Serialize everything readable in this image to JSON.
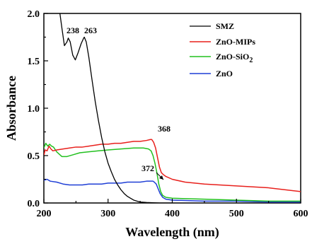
{
  "chart_data": {
    "type": "line",
    "xlabel": "Wavelength (nm)",
    "ylabel": "Absorbance",
    "xlim": [
      200,
      600
    ],
    "ylim": [
      0.0,
      2.0
    ],
    "xticks": [
      200,
      300,
      400,
      500,
      600
    ],
    "yticks": [
      0.0,
      0.5,
      1.0,
      1.5,
      2.0
    ],
    "xtick_labels": [
      "200",
      "300",
      "400",
      "500",
      "600"
    ],
    "ytick_labels": [
      "0.0",
      "0.5",
      "1.0",
      "1.5",
      "2.0"
    ],
    "legend_position": "top-right",
    "series": [
      {
        "name": "SMZ",
        "color": "#000000",
        "points": [
          [
            225,
            2.0
          ],
          [
            228,
            1.85
          ],
          [
            232,
            1.66
          ],
          [
            236,
            1.7
          ],
          [
            238,
            1.74
          ],
          [
            241,
            1.7
          ],
          [
            245,
            1.56
          ],
          [
            249,
            1.51
          ],
          [
            253,
            1.58
          ],
          [
            258,
            1.68
          ],
          [
            262,
            1.74
          ],
          [
            263,
            1.75
          ],
          [
            266,
            1.7
          ],
          [
            270,
            1.54
          ],
          [
            275,
            1.3
          ],
          [
            280,
            1.07
          ],
          [
            285,
            0.87
          ],
          [
            290,
            0.69
          ],
          [
            295,
            0.54
          ],
          [
            300,
            0.42
          ],
          [
            305,
            0.33
          ],
          [
            310,
            0.25
          ],
          [
            315,
            0.19
          ],
          [
            320,
            0.14
          ],
          [
            325,
            0.1
          ],
          [
            330,
            0.07
          ],
          [
            335,
            0.05
          ],
          [
            340,
            0.03
          ],
          [
            345,
            0.02
          ],
          [
            350,
            0.01
          ],
          [
            360,
            0.005
          ],
          [
            380,
            0.0
          ],
          [
            400,
            0.0
          ]
        ]
      },
      {
        "name": "ZnO-MIPs",
        "color": "#e8201c",
        "points": [
          [
            200,
            0.5
          ],
          [
            202,
            0.56
          ],
          [
            205,
            0.55
          ],
          [
            208,
            0.6
          ],
          [
            211,
            0.57
          ],
          [
            214,
            0.55
          ],
          [
            220,
            0.56
          ],
          [
            230,
            0.57
          ],
          [
            240,
            0.58
          ],
          [
            250,
            0.59
          ],
          [
            260,
            0.59
          ],
          [
            270,
            0.6
          ],
          [
            280,
            0.61
          ],
          [
            290,
            0.62
          ],
          [
            300,
            0.62
          ],
          [
            310,
            0.63
          ],
          [
            320,
            0.63
          ],
          [
            330,
            0.64
          ],
          [
            340,
            0.65
          ],
          [
            350,
            0.65
          ],
          [
            360,
            0.66
          ],
          [
            366,
            0.67
          ],
          [
            368,
            0.67
          ],
          [
            371,
            0.64
          ],
          [
            374,
            0.58
          ],
          [
            377,
            0.48
          ],
          [
            380,
            0.38
          ],
          [
            383,
            0.32
          ],
          [
            386,
            0.3
          ],
          [
            390,
            0.28
          ],
          [
            400,
            0.25
          ],
          [
            420,
            0.22
          ],
          [
            450,
            0.2
          ],
          [
            500,
            0.18
          ],
          [
            550,
            0.16
          ],
          [
            600,
            0.12
          ]
        ]
      },
      {
        "name": "ZnO-SiO2",
        "color": "#22c01f",
        "points": [
          [
            200,
            0.58
          ],
          [
            203,
            0.63
          ],
          [
            206,
            0.6
          ],
          [
            209,
            0.62
          ],
          [
            212,
            0.6
          ],
          [
            215,
            0.59
          ],
          [
            220,
            0.54
          ],
          [
            228,
            0.49
          ],
          [
            236,
            0.49
          ],
          [
            246,
            0.51
          ],
          [
            256,
            0.53
          ],
          [
            270,
            0.54
          ],
          [
            285,
            0.55
          ],
          [
            300,
            0.56
          ],
          [
            320,
            0.57
          ],
          [
            340,
            0.58
          ],
          [
            355,
            0.58
          ],
          [
            363,
            0.57
          ],
          [
            367,
            0.55
          ],
          [
            370,
            0.5
          ],
          [
            373,
            0.42
          ],
          [
            376,
            0.32
          ],
          [
            379,
            0.2
          ],
          [
            382,
            0.12
          ],
          [
            385,
            0.08
          ],
          [
            390,
            0.06
          ],
          [
            400,
            0.05
          ],
          [
            450,
            0.04
          ],
          [
            500,
            0.03
          ],
          [
            550,
            0.02
          ],
          [
            600,
            0.02
          ]
        ]
      },
      {
        "name": "ZnO",
        "color": "#1f3fd6",
        "points": [
          [
            200,
            0.24
          ],
          [
            205,
            0.25
          ],
          [
            210,
            0.23
          ],
          [
            220,
            0.22
          ],
          [
            230,
            0.2
          ],
          [
            240,
            0.19
          ],
          [
            250,
            0.19
          ],
          [
            260,
            0.19
          ],
          [
            270,
            0.2
          ],
          [
            280,
            0.2
          ],
          [
            290,
            0.2
          ],
          [
            300,
            0.21
          ],
          [
            310,
            0.21
          ],
          [
            320,
            0.21
          ],
          [
            330,
            0.22
          ],
          [
            340,
            0.22
          ],
          [
            350,
            0.22
          ],
          [
            360,
            0.23
          ],
          [
            365,
            0.23
          ],
          [
            370,
            0.23
          ],
          [
            372,
            0.22
          ],
          [
            375,
            0.2
          ],
          [
            378,
            0.15
          ],
          [
            381,
            0.1
          ],
          [
            385,
            0.06
          ],
          [
            390,
            0.04
          ],
          [
            400,
            0.03
          ],
          [
            450,
            0.02
          ],
          [
            500,
            0.02
          ],
          [
            550,
            0.01
          ],
          [
            600,
            0.01
          ]
        ]
      }
    ],
    "legend_labels": {
      "smz": "SMZ",
      "mips": "ZnO-MIPs",
      "sio2_base": "ZnO-SiO",
      "sio2_sub": "2",
      "zno": "ZnO"
    },
    "annotations": [
      {
        "text": "238",
        "x": 238,
        "y": 1.74
      },
      {
        "text": "263",
        "x": 263,
        "y": 1.75
      },
      {
        "text": "368",
        "x": 368,
        "y": 0.67
      },
      {
        "text": "372",
        "x": 372,
        "y": 0.23
      }
    ]
  }
}
